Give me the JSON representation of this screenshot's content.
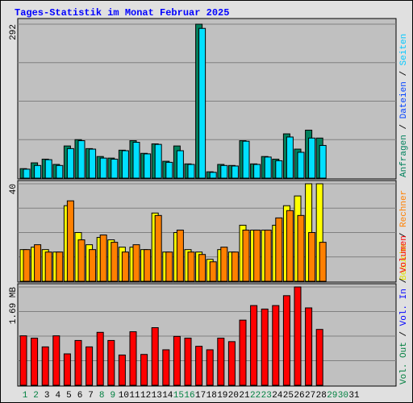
{
  "title": "Tages-Statistik im Monat Februar 2025",
  "separator": " / ",
  "chart_data": [
    {
      "type": "bar",
      "ylim": [
        0,
        292
      ],
      "yticks": [
        292
      ],
      "legend": [
        {
          "label": "Anfragen",
          "color": "#00805c"
        },
        {
          "label": "Dateien",
          "color": "#0040ff"
        },
        {
          "label": "Seiten",
          "color": "#00c8ff"
        }
      ],
      "series": [
        {
          "color": "#00805c",
          "values": [
            18,
            29,
            36,
            26,
            61,
            73,
            56,
            41,
            38,
            53,
            71,
            47,
            65,
            32,
            61,
            27,
            292,
            12,
            26,
            24,
            71,
            27,
            41,
            36,
            84,
            55,
            91,
            76,
            null,
            null,
            null
          ]
        },
        {
          "color": "#00e0ff",
          "values": [
            17,
            24,
            35,
            24,
            56,
            71,
            55,
            38,
            36,
            52,
            68,
            46,
            64,
            30,
            52,
            26,
            284,
            11,
            24,
            23,
            70,
            26,
            40,
            33,
            78,
            49,
            76,
            62,
            null,
            null,
            null
          ]
        }
      ]
    },
    {
      "type": "bar",
      "ylim": [
        0,
        40
      ],
      "yticks": [
        40
      ],
      "legend": [
        {
          "label": "Besuche",
          "color": "#e0e000"
        },
        {
          "label": "Rechner",
          "color": "#ff8000"
        }
      ],
      "series": [
        {
          "color": "#ffff00",
          "values": [
            13,
            14,
            13,
            12,
            31,
            20,
            15,
            18,
            17,
            14,
            14,
            13,
            28,
            12,
            20,
            13,
            12,
            9,
            13,
            12,
            23,
            21,
            21,
            23,
            31,
            35,
            40,
            40,
            null,
            null,
            null
          ]
        },
        {
          "color": "#ff8000",
          "values": [
            13,
            15,
            12,
            12,
            33,
            17,
            13,
            19,
            16,
            12,
            15,
            13,
            27,
            12,
            21,
            12,
            11,
            8,
            14,
            12,
            21,
            21,
            21,
            26,
            29,
            27,
            20,
            16,
            null,
            null,
            null
          ]
        }
      ]
    },
    {
      "type": "bar",
      "ylim": [
        0,
        1.69
      ],
      "yticks": [
        {
          "value": 1.69,
          "label": "1.69 MB"
        }
      ],
      "legend": [
        {
          "label": "Vol. Out",
          "color": "#008040"
        },
        {
          "label": "Vol. In",
          "color": "#0000ff"
        },
        {
          "label": "Volumen",
          "color": "#ff0000"
        }
      ],
      "categories": [
        "1",
        "2",
        "3",
        "4",
        "5",
        "6",
        "7",
        "8",
        "9",
        "10",
        "11",
        "12",
        "13",
        "14",
        "15",
        "16",
        "17",
        "18",
        "19",
        "20",
        "21",
        "22",
        "23",
        "24",
        "25",
        "26",
        "27",
        "28",
        "29",
        "30",
        "31"
      ],
      "category_colors": [
        "#008040",
        "#008040",
        "#000",
        "#000",
        "#000",
        "#000",
        "#000",
        "#008040",
        "#008040",
        "#000",
        "#000",
        "#000",
        "#000",
        "#000",
        "#008040",
        "#008040",
        "#000",
        "#000",
        "#000",
        "#000",
        "#000",
        "#008040",
        "#008040",
        "#000",
        "#000",
        "#000",
        "#000",
        "#000",
        "#008040",
        "#008040",
        "#000"
      ],
      "series": [
        {
          "color": "#ff0000",
          "values": [
            0.85,
            0.81,
            0.66,
            0.85,
            0.54,
            0.77,
            0.66,
            0.91,
            0.77,
            0.52,
            0.92,
            0.53,
            0.99,
            0.61,
            0.84,
            0.81,
            0.67,
            0.61,
            0.81,
            0.75,
            1.12,
            1.37,
            1.31,
            1.37,
            1.54,
            1.69,
            1.33,
            0.96,
            null,
            null,
            null
          ]
        }
      ]
    }
  ]
}
